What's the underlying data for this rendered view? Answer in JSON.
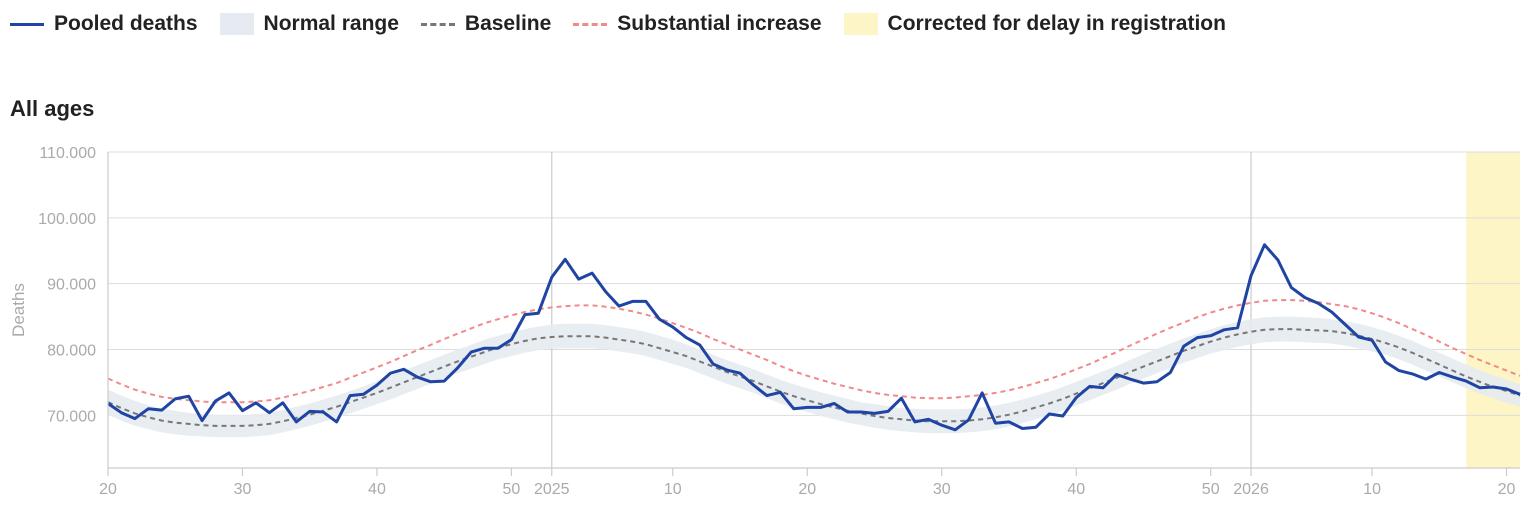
{
  "legend": {
    "pooled": "Pooled deaths",
    "normal": "Normal range",
    "baseline": "Baseline",
    "substantial": "Substantial increase",
    "corrected": "Corrected for delay in registration"
  },
  "subtitle": "All ages",
  "colors": {
    "pooled": "#1f44a3",
    "band": "#e6ebf1",
    "baseline": "#777777",
    "substantial": "#f08a8a",
    "corrected": "#fdf5c5",
    "grid": "#dddddd"
  },
  "chart_data": {
    "type": "line",
    "ylabel": "Deaths",
    "ylim": [
      62000,
      110000
    ],
    "y_ticks": [
      70000,
      80000,
      90000,
      100000,
      110000
    ],
    "y_tick_labels": [
      "70.000",
      "80.000",
      "90.000",
      "100.000",
      "110.000"
    ],
    "x_ticks": [
      {
        "index": 0,
        "label": "20"
      },
      {
        "index": 10,
        "label": "30"
      },
      {
        "index": 20,
        "label": "40"
      },
      {
        "index": 30,
        "label": "50"
      },
      {
        "index": 33,
        "label": "2025"
      },
      {
        "index": 42,
        "label": "10"
      },
      {
        "index": 52,
        "label": "20"
      },
      {
        "index": 62,
        "label": "30"
      },
      {
        "index": 72,
        "label": "40"
      },
      {
        "index": 82,
        "label": "50"
      },
      {
        "index": 85,
        "label": "2026"
      },
      {
        "index": 94,
        "label": "10"
      },
      {
        "index": 104,
        "label": "20"
      }
    ],
    "year_lines": [
      33,
      85
    ],
    "corrected_from": 101,
    "pooled": [
      71800,
      70400,
      69500,
      71000,
      70800,
      72500,
      72900,
      69200,
      72200,
      73400,
      70700,
      71900,
      70400,
      71900,
      69000,
      70600,
      70500,
      69000,
      73000,
      73200,
      74600,
      76400,
      77000,
      75800,
      75100,
      75200,
      77200,
      79600,
      80200,
      80200,
      81500,
      85300,
      85500,
      91000,
      93700,
      90700,
      91600,
      88800,
      86600,
      87300,
      87300,
      84600,
      83400,
      81800,
      80700,
      77800,
      76900,
      76400,
      74600,
      73000,
      73500,
      71000,
      71200,
      71200,
      71800,
      70500,
      70500,
      70300,
      70600,
      72600,
      69000,
      69400,
      68500,
      67800,
      69300,
      73400,
      68800,
      69000,
      68000,
      68200,
      70200,
      69900,
      72700,
      74400,
      74200,
      76200,
      75500,
      74900,
      75100,
      76500,
      80500,
      81800,
      82100,
      83000,
      83300,
      91200,
      95900,
      93600,
      89400,
      87900,
      87000,
      85700,
      83800,
      81900,
      81400,
      78100,
      76800,
      76300,
      75500,
      76500,
      75800,
      75200,
      74200,
      74300,
      74000,
      73200
    ],
    "baseline": [
      72000,
      71100,
      70300,
      69700,
      69200,
      68900,
      68700,
      68500,
      68400,
      68400,
      68400,
      68500,
      68700,
      69100,
      69600,
      70100,
      70700,
      71300,
      72000,
      72700,
      73400,
      74200,
      75000,
      75800,
      76600,
      77400,
      78200,
      78900,
      79600,
      80300,
      80800,
      81300,
      81700,
      81900,
      82000,
      82000,
      82000,
      81800,
      81500,
      81200,
      80800,
      80200,
      79600,
      79000,
      78200,
      77400,
      76600,
      75900,
      75200,
      74400,
      73600,
      72900,
      72300,
      71700,
      71200,
      70700,
      70300,
      69900,
      69600,
      69400,
      69200,
      69100,
      69100,
      69100,
      69200,
      69400,
      69700,
      70100,
      70600,
      71200,
      71800,
      72500,
      73300,
      74100,
      74900,
      75700,
      76600,
      77400,
      78200,
      79000,
      79800,
      80500,
      81200,
      81800,
      82300,
      82700,
      83000,
      83100,
      83100,
      83000,
      82900,
      82800,
      82500,
      82100,
      81600,
      81000,
      80300,
      79500,
      78600,
      77700,
      76800,
      75900,
      75100,
      74300,
      73700,
      73000
    ],
    "normal_upper": [
      73900,
      73000,
      72200,
      71500,
      71000,
      70700,
      70400,
      70200,
      70100,
      70100,
      70100,
      70200,
      70400,
      70800,
      71300,
      71800,
      72400,
      73000,
      73700,
      74400,
      75200,
      76000,
      76800,
      77600,
      78400,
      79200,
      80000,
      80700,
      81500,
      82100,
      82600,
      83100,
      83500,
      83800,
      83900,
      83900,
      83900,
      83700,
      83400,
      83100,
      82700,
      82100,
      81500,
      80800,
      80000,
      79200,
      78400,
      77700,
      77000,
      76200,
      75400,
      74700,
      74100,
      73500,
      73000,
      72500,
      72000,
      71700,
      71400,
      71100,
      71000,
      70900,
      70900,
      70900,
      71000,
      71200,
      71500,
      71900,
      72400,
      73000,
      73600,
      74300,
      75100,
      75900,
      76700,
      77500,
      78400,
      79300,
      80100,
      80900,
      81700,
      82400,
      83100,
      83700,
      84200,
      84600,
      84900,
      85000,
      85000,
      84900,
      84800,
      84600,
      84300,
      83900,
      83400,
      82800,
      82100,
      81300,
      80400,
      79500,
      78600,
      77700,
      76900,
      76100,
      75400,
      74700
    ],
    "normal_lower": [
      70100,
      69200,
      68400,
      67900,
      67400,
      67100,
      66900,
      66800,
      66700,
      66700,
      66700,
      66800,
      67000,
      67400,
      67900,
      68400,
      69000,
      69600,
      70300,
      71000,
      71700,
      72400,
      73200,
      74000,
      74800,
      75600,
      76400,
      77100,
      77800,
      78500,
      79000,
      79500,
      79900,
      80100,
      80200,
      80200,
      80200,
      80000,
      79700,
      79400,
      79000,
      78400,
      77800,
      77200,
      76400,
      75600,
      74800,
      74100,
      73400,
      72600,
      71800,
      71100,
      70500,
      69900,
      69400,
      68900,
      68500,
      68100,
      67800,
      67600,
      67400,
      67300,
      67300,
      67300,
      67400,
      67600,
      67900,
      68300,
      68800,
      69400,
      70000,
      70700,
      71500,
      72300,
      73100,
      73900,
      74800,
      75600,
      76400,
      77200,
      78000,
      78700,
      79400,
      79900,
      80400,
      80800,
      81100,
      81200,
      81200,
      81100,
      81000,
      80900,
      80600,
      80200,
      79700,
      79200,
      78500,
      77700,
      76800,
      75900,
      75000,
      74100,
      73300,
      72600,
      71900,
      71300
    ],
    "substantial": [
      75600,
      74700,
      73900,
      73300,
      72800,
      72500,
      72300,
      72100,
      72000,
      72000,
      72000,
      72100,
      72300,
      72700,
      73200,
      73700,
      74300,
      74900,
      75700,
      76500,
      77300,
      78100,
      79000,
      79900,
      80700,
      81600,
      82400,
      83200,
      84000,
      84600,
      85200,
      85700,
      86100,
      86400,
      86600,
      86700,
      86700,
      86500,
      86200,
      85800,
      85300,
      84700,
      84000,
      83300,
      82500,
      81600,
      80800,
      80000,
      79200,
      78400,
      77500,
      76700,
      76000,
      75400,
      74800,
      74300,
      73800,
      73400,
      73100,
      72900,
      72700,
      72600,
      72600,
      72700,
      72900,
      73100,
      73400,
      73800,
      74300,
      74900,
      75500,
      76200,
      77000,
      77800,
      78700,
      79600,
      80600,
      81500,
      82400,
      83300,
      84100,
      84900,
      85600,
      86200,
      86700,
      87100,
      87400,
      87500,
      87500,
      87400,
      87200,
      86900,
      86600,
      86100,
      85500,
      84800,
      84000,
      83100,
      82200,
      81200,
      80200,
      79300,
      78400,
      77600,
      76800,
      76000
    ]
  }
}
